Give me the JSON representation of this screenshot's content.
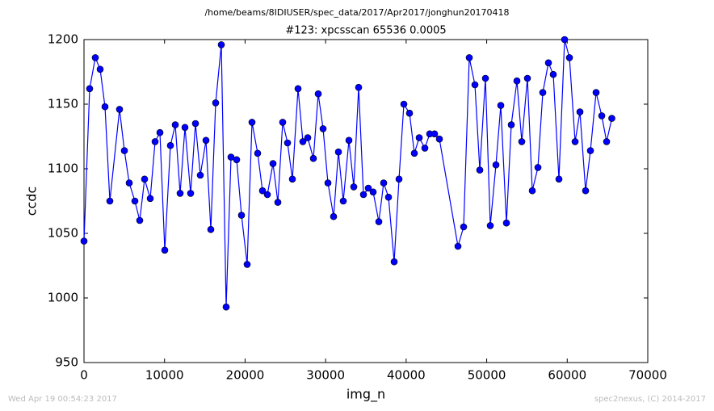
{
  "chart_data": {
    "type": "line",
    "suptitle": "/home/beams/8IDIUSER/spec_data/2017/Apr2017/jonghun20170418",
    "title": "#123: xpcsscan 65536 0.0005",
    "xlabel": "img_n",
    "ylabel": "ccdc",
    "footer_left": "Wed Apr 19 00:54:23 2017",
    "footer_right": "spec2nexus, (C) 2014-2017",
    "x": [
      0,
      702,
      1404,
      2006,
      2608,
      3209,
      4413,
      5015,
      5616,
      6318,
      6920,
      7522,
      8224,
      8826,
      9427,
      10029,
      10731,
      11333,
      11935,
      12536,
      13238,
      13840,
      14442,
      15144,
      15746,
      16347,
      17049,
      17651,
      18253,
      18955,
      19557,
      20259,
      20860,
      21562,
      22164,
      22766,
      23468,
      24070,
      24671,
      25273,
      25875,
      26577,
      27179,
      27780,
      28482,
      29084,
      29686,
      30288,
      30990,
      31591,
      32193,
      32895,
      33497,
      34099,
      34700,
      35302,
      35904,
      36606,
      37208,
      37809,
      38511,
      39113,
      39715,
      40417,
      41019,
      41620,
      42322,
      42924,
      43526,
      44128,
      46434,
      47136,
      47838,
      48540,
      49142,
      49844,
      50446,
      51148,
      51750,
      52452,
      53053,
      53755,
      54357,
      55059,
      55661,
      56363,
      56965,
      57667,
      58268,
      58970,
      59673,
      60275,
      60977,
      61578,
      62280,
      62882,
      63584,
      64286,
      64888,
      65536
    ],
    "series": [
      {
        "color": "#0000ff",
        "values": [
          1044,
          1162,
          1186,
          1177,
          1148,
          1075,
          1146,
          1114,
          1089,
          1075,
          1060,
          1092,
          1077,
          1121,
          1128,
          1037,
          1118,
          1134,
          1081,
          1132,
          1081,
          1135,
          1095,
          1122,
          1053,
          1151,
          1196,
          993,
          1109,
          1107,
          1064,
          1026,
          1136,
          1112,
          1083,
          1080,
          1104,
          1074,
          1136,
          1120,
          1092,
          1162,
          1121,
          1124,
          1108,
          1158,
          1131,
          1089,
          1063,
          1113,
          1075,
          1122,
          1086,
          1163,
          1080,
          1085,
          1082,
          1059,
          1089,
          1078,
          1028,
          1092,
          1150,
          1143,
          1112,
          1124,
          1116,
          1127,
          1127,
          1123,
          1040,
          1055,
          1186,
          1165,
          1099,
          1170,
          1056,
          1103,
          1149,
          1058,
          1134,
          1168,
          1121,
          1170,
          1083,
          1101,
          1159,
          1182,
          1173,
          1092,
          1200,
          1186,
          1121,
          1144,
          1083,
          1114,
          1159,
          1141,
          1121,
          1139
        ]
      }
    ],
    "xlim": [
      0,
      70000
    ],
    "ylim": [
      950,
      1200
    ],
    "xticks": [
      0,
      10000,
      20000,
      30000,
      40000,
      50000,
      60000,
      70000
    ],
    "yticks": [
      950,
      1000,
      1050,
      1100,
      1150,
      1200
    ]
  }
}
